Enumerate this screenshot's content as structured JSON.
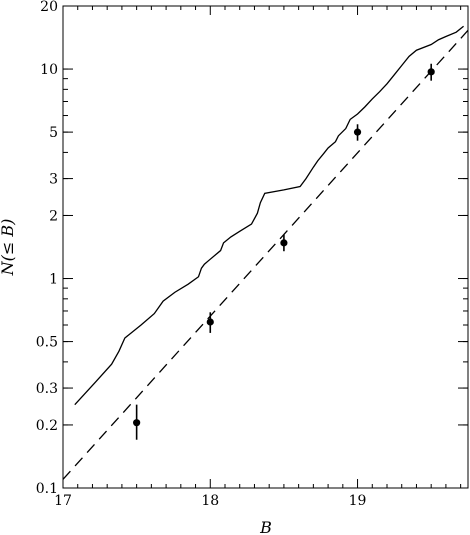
{
  "chart_data": {
    "type": "line",
    "title": "",
    "xlabel": "B",
    "ylabel": "N(≤ B)",
    "xlim": [
      17,
      19.75
    ],
    "ylim": [
      0.1,
      20
    ],
    "y_scale": "log",
    "grid": false,
    "x_ticks": [
      {
        "value": 17,
        "label": "17"
      },
      {
        "value": 18,
        "label": "18"
      },
      {
        "value": 19,
        "label": "19"
      }
    ],
    "y_ticks": [
      {
        "value": 0.1,
        "label": "0.1"
      },
      {
        "value": 0.2,
        "label": "0.2"
      },
      {
        "value": 0.3,
        "label": "0.3"
      },
      {
        "value": 0.5,
        "label": "0.5"
      },
      {
        "value": 1,
        "label": "1"
      },
      {
        "value": 2,
        "label": "2"
      },
      {
        "value": 3,
        "label": "3"
      },
      {
        "value": 5,
        "label": "5"
      },
      {
        "value": 10,
        "label": "10"
      },
      {
        "value": 20,
        "label": "20"
      }
    ],
    "series": [
      {
        "style": "solid",
        "x": [
          17.08,
          17.22,
          17.33,
          17.38,
          17.42,
          17.53,
          17.62,
          17.68,
          17.76,
          17.85,
          17.92,
          17.94,
          17.96,
          17.99,
          18.07,
          18.09,
          18.14,
          18.2,
          18.28,
          18.32,
          18.34,
          18.37,
          18.5,
          18.61,
          18.65,
          18.7,
          18.73,
          18.77,
          18.8,
          18.85,
          18.87,
          18.92,
          18.95,
          19.0,
          19.05,
          19.1,
          19.15,
          19.2,
          19.25,
          19.3,
          19.35,
          19.4,
          19.5,
          19.55,
          19.6,
          19.67,
          19.72
        ],
        "values": [
          0.25,
          0.32,
          0.39,
          0.45,
          0.52,
          0.6,
          0.68,
          0.78,
          0.86,
          0.94,
          1.02,
          1.12,
          1.17,
          1.22,
          1.36,
          1.48,
          1.58,
          1.68,
          1.82,
          2.05,
          2.3,
          2.55,
          2.65,
          2.75,
          3.0,
          3.4,
          3.65,
          3.95,
          4.2,
          4.5,
          4.8,
          5.2,
          5.75,
          6.1,
          6.6,
          7.2,
          7.8,
          8.5,
          9.4,
          10.4,
          11.5,
          12.3,
          13.1,
          13.8,
          14.3,
          15.0,
          16.0
        ]
      },
      {
        "style": "dashed",
        "x": [
          17.0,
          19.75
        ],
        "values": [
          0.11,
          15.3
        ]
      },
      {
        "style": "points-with-error-bars",
        "x": [
          17.5,
          18.0,
          18.5,
          19.0,
          19.5
        ],
        "values": [
          0.205,
          0.62,
          1.48,
          5.0,
          9.7
        ],
        "err_low": [
          0.17,
          0.55,
          1.35,
          4.55,
          8.8
        ],
        "err_high": [
          0.25,
          0.69,
          1.62,
          5.45,
          10.6
        ]
      }
    ]
  }
}
